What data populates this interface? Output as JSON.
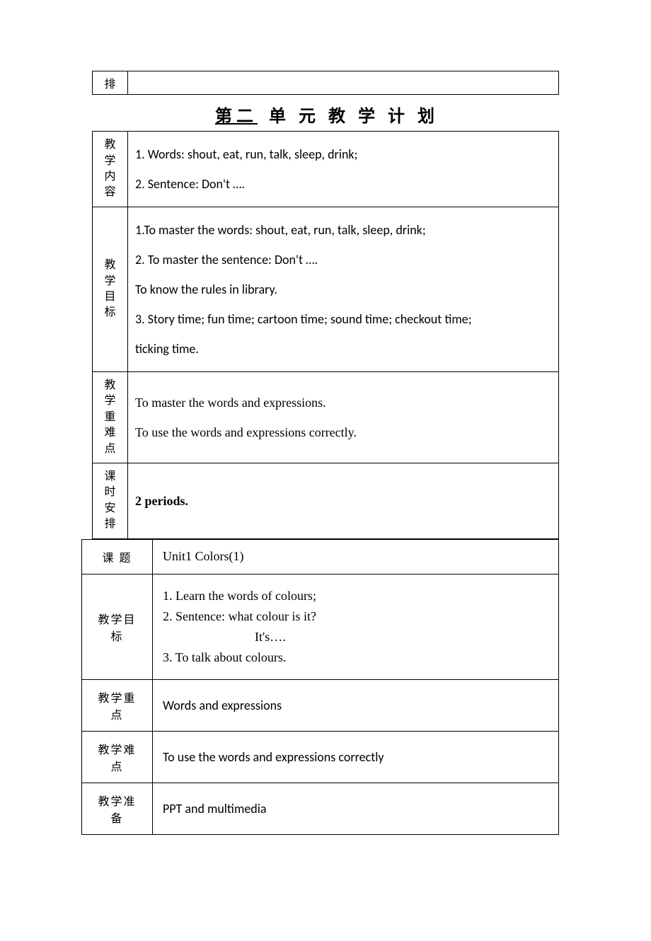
{
  "top_row_label": "排",
  "page_title_prefix": "第二",
  "page_title_suffix": "单 元 教 学 计 划",
  "rows": [
    {
      "label": "教\n学\n内\n容",
      "content": [
        "1.  Words: shout, eat, run, talk, sleep, drink;",
        "2.  Sentence: Don't …."
      ]
    },
    {
      "label": "教\n学\n目\n标",
      "content": [
        "1.To master the words: shout, eat, run, talk, sleep, drink;",
        "2. To master the sentence: Don't ….",
        "To know the rules in library.",
        "3. Story time; fun time; cartoon time; sound time; checkout time;",
        "ticking time."
      ]
    },
    {
      "label": "教\n学\n重\n难\n点",
      "content": [
        "To master the words and expressions.",
        "To use the words and expressions correctly."
      ]
    },
    {
      "label": "课\n时\n安\n排",
      "content": [
        "2 periods."
      ]
    }
  ],
  "lesson": {
    "title_label": "课  题",
    "title_value": "Unit1 Colors(1)",
    "goal_label": "教学目标",
    "goal_lines": [
      "1.  Learn the words of colours;",
      "2.  Sentence: what colour is it?",
      "It's….",
      "3. To talk about colours."
    ],
    "focus_label": "教学重点",
    "focus_value": "Words and expressions",
    "difficulty_label": "教学难点",
    "difficulty_value": "To use the words and expressions correctly",
    "prep_label": "教学准备",
    "prep_value": "PPT and multimedia"
  }
}
